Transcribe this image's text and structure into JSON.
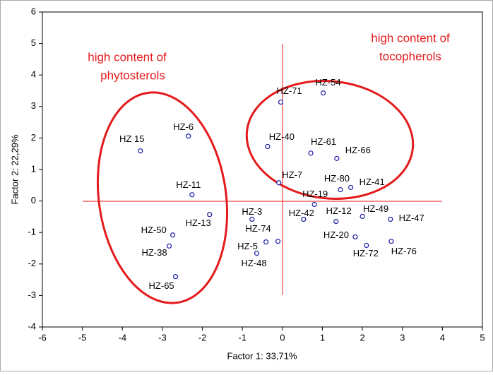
{
  "chart_data": {
    "type": "scatter",
    "xlabel": "Factor 1: 33,71%",
    "ylabel": "Factor 2: 22,29%",
    "xlim": [
      -6,
      5
    ],
    "xticks": [
      -6,
      -5,
      -4,
      -3,
      -2,
      -1,
      0,
      1,
      2,
      3,
      4,
      5
    ],
    "ylim": [
      -4,
      6
    ],
    "yticks": [
      -4,
      -3,
      -2,
      -1,
      0,
      1,
      2,
      3,
      4,
      5,
      6
    ],
    "color": "#1a1aa8",
    "labels": [
      "HZ 15",
      "HZ-6",
      "HZ-11",
      "HZ-13",
      "HZ-50",
      "HZ-38",
      "HZ-65",
      "HZ-71",
      "HZ-54",
      "HZ-40",
      "HZ-61",
      "HZ-66",
      "HZ-7",
      "HZ-80",
      "HZ-41",
      "HZ-19",
      "HZ-42",
      "HZ-12",
      "HZ-49",
      "HZ-47",
      "HZ-3",
      "HZ-74",
      "HZ-5",
      "HZ-48",
      "HZ-20",
      "HZ-72",
      "HZ-76"
    ],
    "x": [
      -3.55,
      -2.35,
      -2.26,
      -1.82,
      -2.74,
      -2.83,
      -2.67,
      -0.04,
      1.02,
      -0.37,
      0.71,
      1.36,
      -0.09,
      1.45,
      1.71,
      0.8,
      0.53,
      1.34,
      2.0,
      2.7,
      -0.76,
      -0.41,
      -0.64,
      -0.11,
      1.82,
      2.1,
      2.72
    ],
    "values": [
      1.59,
      2.06,
      0.2,
      -0.43,
      -1.08,
      -1.43,
      -2.4,
      3.14,
      3.43,
      1.73,
      1.52,
      1.35,
      0.58,
      0.36,
      0.43,
      -0.11,
      -0.58,
      -0.65,
      -0.49,
      -0.58,
      -0.58,
      -1.3,
      -1.66,
      -1.28,
      -1.14,
      -1.41,
      -1.28
    ],
    "annotations": [
      {
        "lines": [
          "high content of",
          "phytosterols"
        ]
      },
      {
        "lines": [
          "high content of",
          "tocopherols"
        ]
      }
    ]
  }
}
